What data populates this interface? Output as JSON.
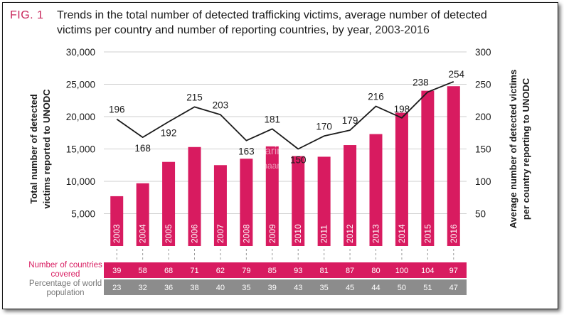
{
  "figure": {
    "label": "FIG. 1",
    "title_line1": "Trends in the total number of detected trafficking victims, average number of detected",
    "title_line2": "victims per country and number of reporting countries, by year,",
    "title_years": "2003-2016"
  },
  "watermark": {
    "line1": "Hinarin",
    "line2": "Hinaan"
  },
  "colors": {
    "bar": "#d81b60",
    "line": "#1a1a1a",
    "row_countries": "#d81b60",
    "row_population": "#8c8c8c"
  },
  "chart_data": {
    "type": "bar",
    "categories": [
      "2003",
      "2004",
      "2005",
      "2006",
      "2007",
      "2008",
      "2009",
      "2010",
      "2011",
      "2012",
      "2013",
      "2014",
      "2015",
      "2016"
    ],
    "series": [
      {
        "name": "Total number of detected victims reported to UNODC",
        "axis": "left",
        "values": [
          7700,
          9700,
          13000,
          15300,
          12500,
          13500,
          15400,
          13900,
          13800,
          15600,
          17300,
          20600,
          24000,
          24700
        ]
      },
      {
        "name": "Average number of detected victims per country reporting to UNODC",
        "axis": "right",
        "type": "line",
        "values": [
          196,
          168,
          192,
          215,
          203,
          163,
          181,
          150,
          170,
          179,
          216,
          198,
          238,
          254
        ],
        "labels": [
          "196",
          "168",
          "192",
          "215",
          "203",
          "163",
          "181",
          "150",
          "170",
          "179",
          "216",
          "198",
          "238",
          "254"
        ]
      }
    ],
    "ylabel_left_line1": "Total number of detected",
    "ylabel_left_line2": "victims reported to UNODC",
    "ylabel_right_line1": "Average number of detected victims",
    "ylabel_right_line2": "per country reporting to UNODC",
    "ylim_left": [
      0,
      30000
    ],
    "ylim_right": [
      0,
      300
    ],
    "yticks_left": [
      5000,
      10000,
      15000,
      20000,
      25000,
      30000
    ],
    "yticks_left_labels": [
      "5,000",
      "10,000",
      "15,000",
      "20,000",
      "25,000",
      "30,000"
    ],
    "yticks_right": [
      50,
      100,
      150,
      200,
      250,
      300
    ],
    "yticks_right_labels": [
      "50",
      "100",
      "150",
      "200",
      "250",
      "300"
    ],
    "table": {
      "countries_label_line1": "Number of countries",
      "countries_label_line2": "covered",
      "countries": [
        "39",
        "58",
        "68",
        "71",
        "62",
        "79",
        "85",
        "93",
        "81",
        "87",
        "80",
        "100",
        "104",
        "97"
      ],
      "population_label_line1": "Percentage of world",
      "population_label_line2": "population",
      "population": [
        "23",
        "32",
        "36",
        "38",
        "40",
        "35",
        "39",
        "43",
        "35",
        "45",
        "44",
        "50",
        "51",
        "47"
      ]
    }
  }
}
